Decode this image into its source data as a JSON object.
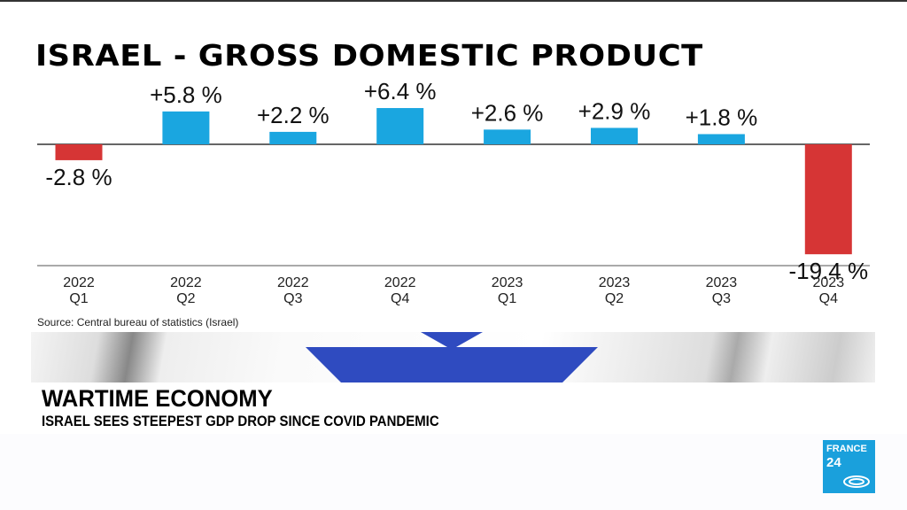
{
  "title": "ISRAEL - GROSS DOMESTIC PRODUCT",
  "source": "Source: Central bureau of statistics (Israel)",
  "headline": "WARTIME ECONOMY",
  "subheadline": "ISRAEL SEES STEEPEST GDP DROP SINCE COVID PANDEMIC",
  "logo": {
    "line1": "FRANCE",
    "line2": "24"
  },
  "colors": {
    "positive": "#1aa6e0",
    "negative": "#d63535",
    "flag_blue": "#2f4bc0"
  },
  "chart_data": {
    "type": "bar",
    "title": "ISRAEL - GROSS DOMESTIC PRODUCT",
    "categories": [
      [
        "2022",
        "Q1"
      ],
      [
        "2022",
        "Q2"
      ],
      [
        "2022",
        "Q3"
      ],
      [
        "2022",
        "Q4"
      ],
      [
        "2023",
        "Q1"
      ],
      [
        "2023",
        "Q2"
      ],
      [
        "2023",
        "Q3"
      ],
      [
        "2023",
        "Q4"
      ]
    ],
    "values": [
      -2.8,
      5.8,
      2.2,
      6.4,
      2.6,
      2.9,
      1.8,
      -19.4
    ],
    "labels": [
      "-2.8 %",
      "+5.8 %",
      "+2.2 %",
      "+6.4 %",
      "+2.6 %",
      "+2.9 %",
      "+1.8 %",
      "-19.4 %"
    ],
    "xlabel": "",
    "ylabel": "",
    "grid": false
  }
}
